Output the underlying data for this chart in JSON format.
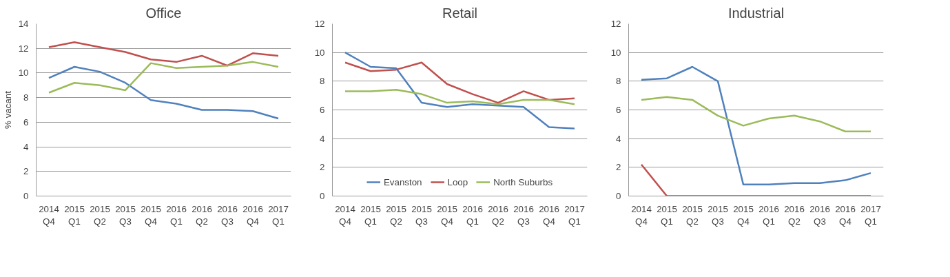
{
  "chart_data": [
    {
      "type": "line",
      "title": "Office",
      "ylabel": "% vacant",
      "categories": [
        "2014\nQ4",
        "2015\nQ1",
        "2015\nQ2",
        "2015\nQ3",
        "2015\nQ4",
        "2016\nQ1",
        "2016\nQ2",
        "2016\nQ3",
        "2016\nQ4",
        "2017\nQ1"
      ],
      "series": [
        {
          "color": "#4f81bd",
          "values": [
            9.6,
            10.5,
            10.1,
            9.2,
            7.8,
            7.5,
            7.0,
            7.0,
            6.9,
            6.3
          ]
        },
        {
          "color": "#c0504d",
          "values": [
            12.1,
            12.5,
            12.1,
            11.7,
            11.1,
            10.9,
            11.4,
            10.6,
            11.6,
            11.4
          ]
        },
        {
          "color": "#9bbb59",
          "values": [
            8.4,
            9.2,
            9.0,
            8.6,
            10.8,
            10.4,
            10.5,
            10.6,
            10.9,
            10.5
          ]
        }
      ],
      "ylim": [
        0,
        14
      ],
      "yticks": [
        0,
        2,
        4,
        6,
        8,
        10,
        12,
        14
      ],
      "grid": "y",
      "marker": "none",
      "line_style": "solid"
    },
    {
      "type": "line",
      "title": "Retail",
      "categories": [
        "2014\nQ4",
        "2015\nQ1",
        "2015\nQ2",
        "2015\nQ3",
        "2015\nQ4",
        "2016\nQ1",
        "2016\nQ2",
        "2016\nQ3",
        "2016\nQ4",
        "2017\nQ1"
      ],
      "series": [
        {
          "name": "Evanston",
          "color": "#4f81bd",
          "values": [
            10.0,
            9.0,
            8.9,
            6.5,
            6.2,
            6.4,
            6.3,
            6.2,
            4.8,
            4.7
          ]
        },
        {
          "name": "Loop",
          "color": "#c0504d",
          "values": [
            9.3,
            8.7,
            8.8,
            9.3,
            7.8,
            7.1,
            6.5,
            7.3,
            6.7,
            6.8
          ]
        },
        {
          "name": "North Suburbs",
          "color": "#9bbb59",
          "values": [
            7.3,
            7.3,
            7.4,
            7.1,
            6.5,
            6.6,
            6.4,
            6.7,
            6.7,
            6.4
          ]
        }
      ],
      "ylim": [
        0,
        12
      ],
      "yticks": [
        0,
        2,
        4,
        6,
        8,
        10,
        12
      ],
      "grid": "y",
      "legend": "bottom",
      "marker": "none",
      "line_style": "solid"
    },
    {
      "type": "line",
      "title": "Industrial",
      "categories": [
        "2014\nQ4",
        "2015\nQ1",
        "2015\nQ2",
        "2015\nQ3",
        "2015\nQ4",
        "2016\nQ1",
        "2016\nQ2",
        "2016\nQ3",
        "2016\nQ4",
        "2017\nQ1"
      ],
      "series": [
        {
          "color": "#4f81bd",
          "values": [
            8.1,
            8.2,
            9.0,
            8.0,
            0.8,
            0.8,
            0.9,
            0.9,
            1.1,
            1.6
          ]
        },
        {
          "color": "#c0504d",
          "values": [
            2.2,
            0,
            0,
            0,
            0,
            0,
            0,
            0,
            0,
            0
          ]
        },
        {
          "color": "#9bbb59",
          "values": [
            6.7,
            6.9,
            6.7,
            5.6,
            4.9,
            5.4,
            5.6,
            5.2,
            4.5,
            4.5
          ]
        }
      ],
      "ylim": [
        0,
        12
      ],
      "yticks": [
        0,
        2,
        4,
        6,
        8,
        10,
        12
      ],
      "grid": "y",
      "marker": "none",
      "line_style": "solid"
    }
  ]
}
